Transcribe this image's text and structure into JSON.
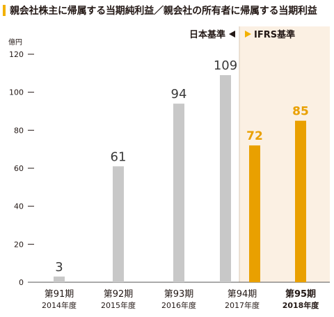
{
  "title": "親会社株主に帰属する当期純利益／親会社の所有者に帰属する当期利益",
  "colors": {
    "accent": "#f2b100",
    "jgaap_bar": "#c8c8c8",
    "ifrs_bar": "#e9a000",
    "ifrs_band": "#fbf0e3",
    "text": "#231815",
    "value_text": "#3a3a3a"
  },
  "chart_data": {
    "type": "bar",
    "title": "親会社株主に帰属する当期純利益／親会社の所有者に帰属する当期利益",
    "unit_label": "億円",
    "ylim": [
      0,
      120
    ],
    "yticks": [
      0,
      20,
      40,
      60,
      80,
      100,
      120
    ],
    "gridlines": false,
    "categories": [
      "第91期",
      "第92期",
      "第93期",
      "第94期",
      "第95期"
    ],
    "subcategories": [
      "2014年度",
      "2015年度",
      "2016年度",
      "2017年度",
      "2018年度"
    ],
    "highlight_category": "第95期",
    "legend": {
      "jgaap": "日本基準",
      "ifrs": "IFRS基準"
    },
    "series": [
      {
        "name": "日本基準",
        "color": "#c8c8c8",
        "values": [
          3,
          61,
          94,
          109,
          null
        ]
      },
      {
        "name": "IFRS基準",
        "color": "#e9a000",
        "values": [
          null,
          null,
          null,
          72,
          85
        ]
      }
    ]
  }
}
